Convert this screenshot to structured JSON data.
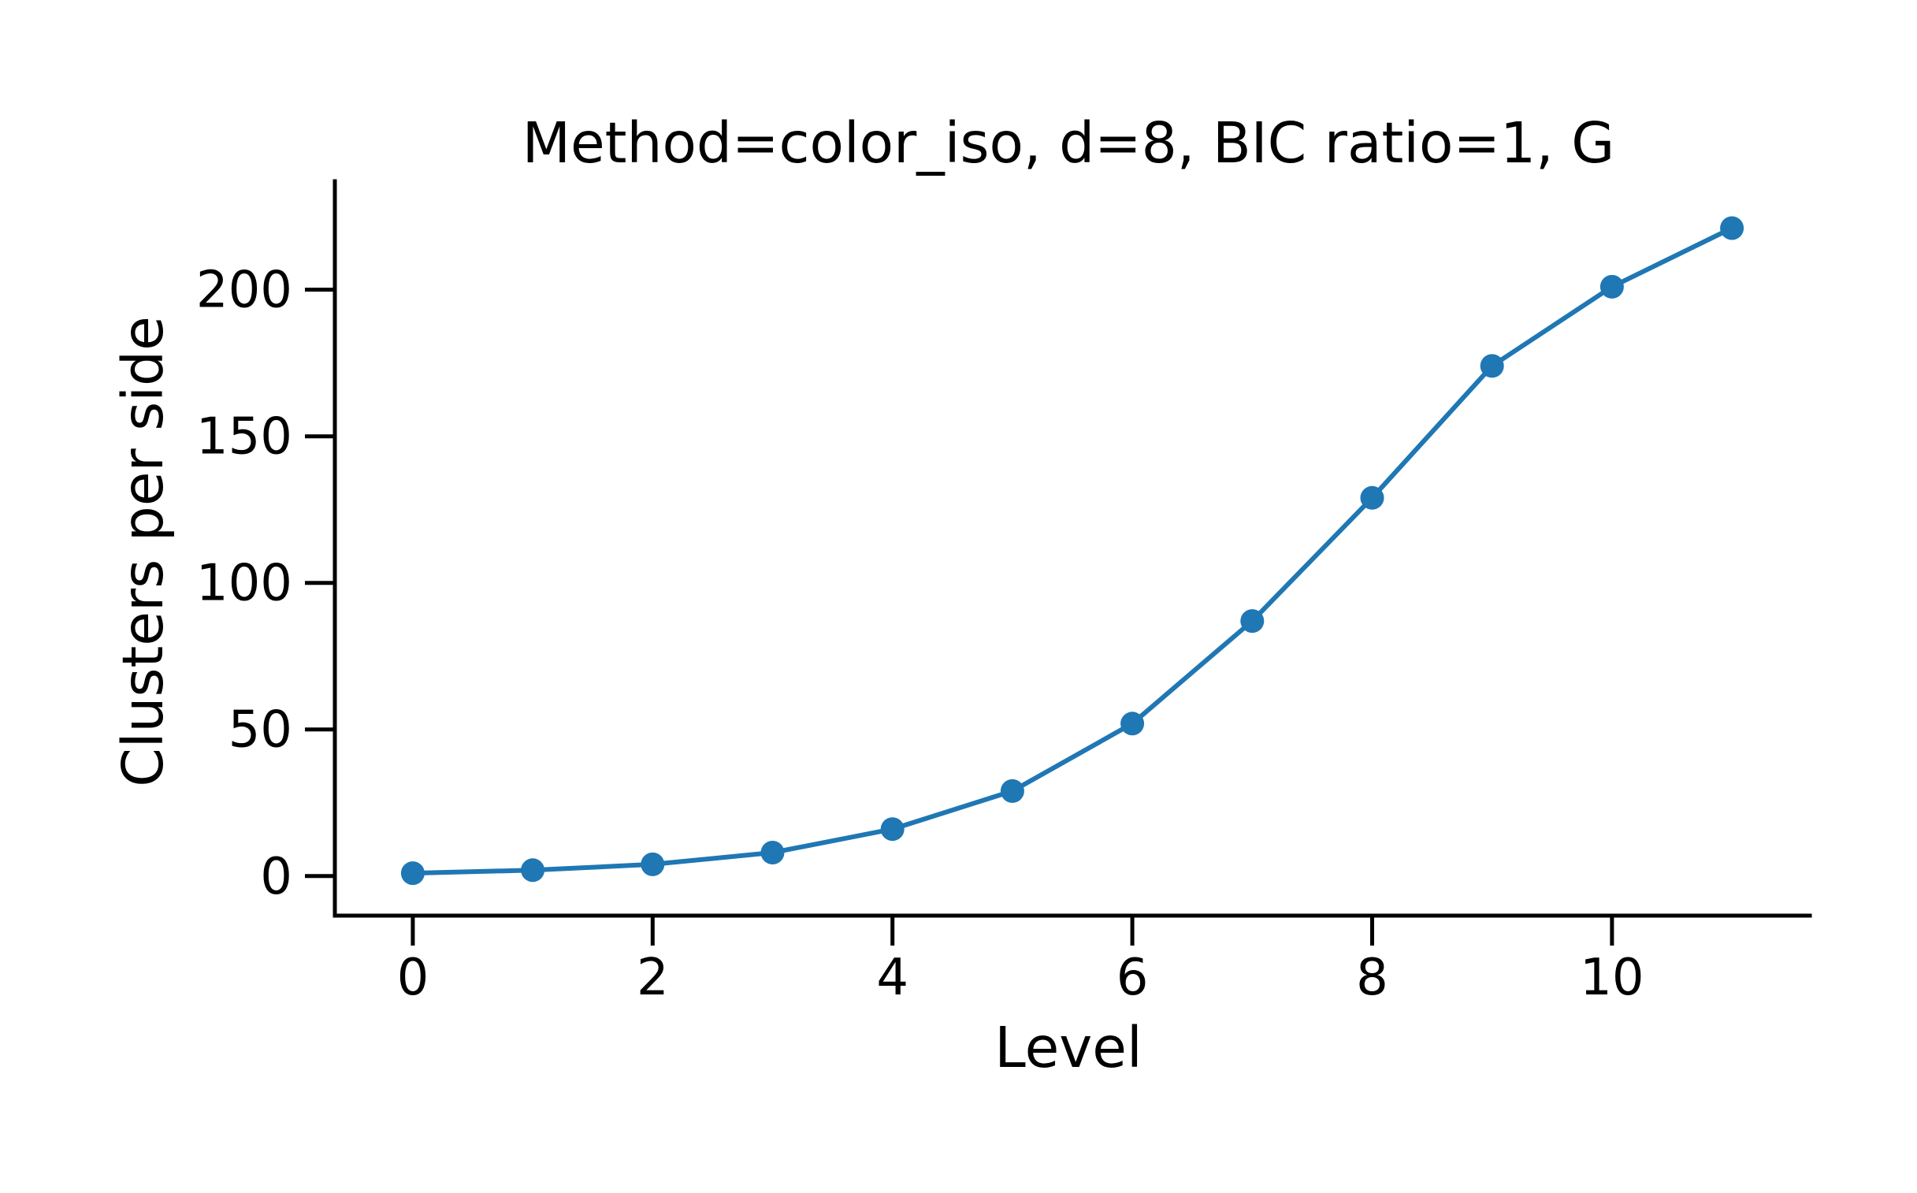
{
  "chart_data": {
    "type": "line",
    "title": "Method=color_iso, d=8, BIC ratio=1, G",
    "xlabel": "Level",
    "ylabel": "Clusters per side",
    "x": [
      0,
      1,
      2,
      3,
      4,
      5,
      6,
      7,
      8,
      9,
      10,
      11
    ],
    "series": [
      {
        "values": [
          1,
          2,
          4,
          8,
          16,
          29,
          52,
          87,
          129,
          174,
          201,
          221
        ]
      }
    ],
    "xticks": [
      0,
      2,
      4,
      6,
      8,
      10
    ],
    "yticks": [
      0,
      50,
      100,
      150,
      200
    ],
    "xlim": [
      -0.65,
      11.65
    ],
    "ylim": [
      -13.5,
      237
    ],
    "grid": false,
    "legend": "none",
    "markers": true,
    "colors": {
      "series": "#1f77b4",
      "axes": "#000000"
    }
  }
}
